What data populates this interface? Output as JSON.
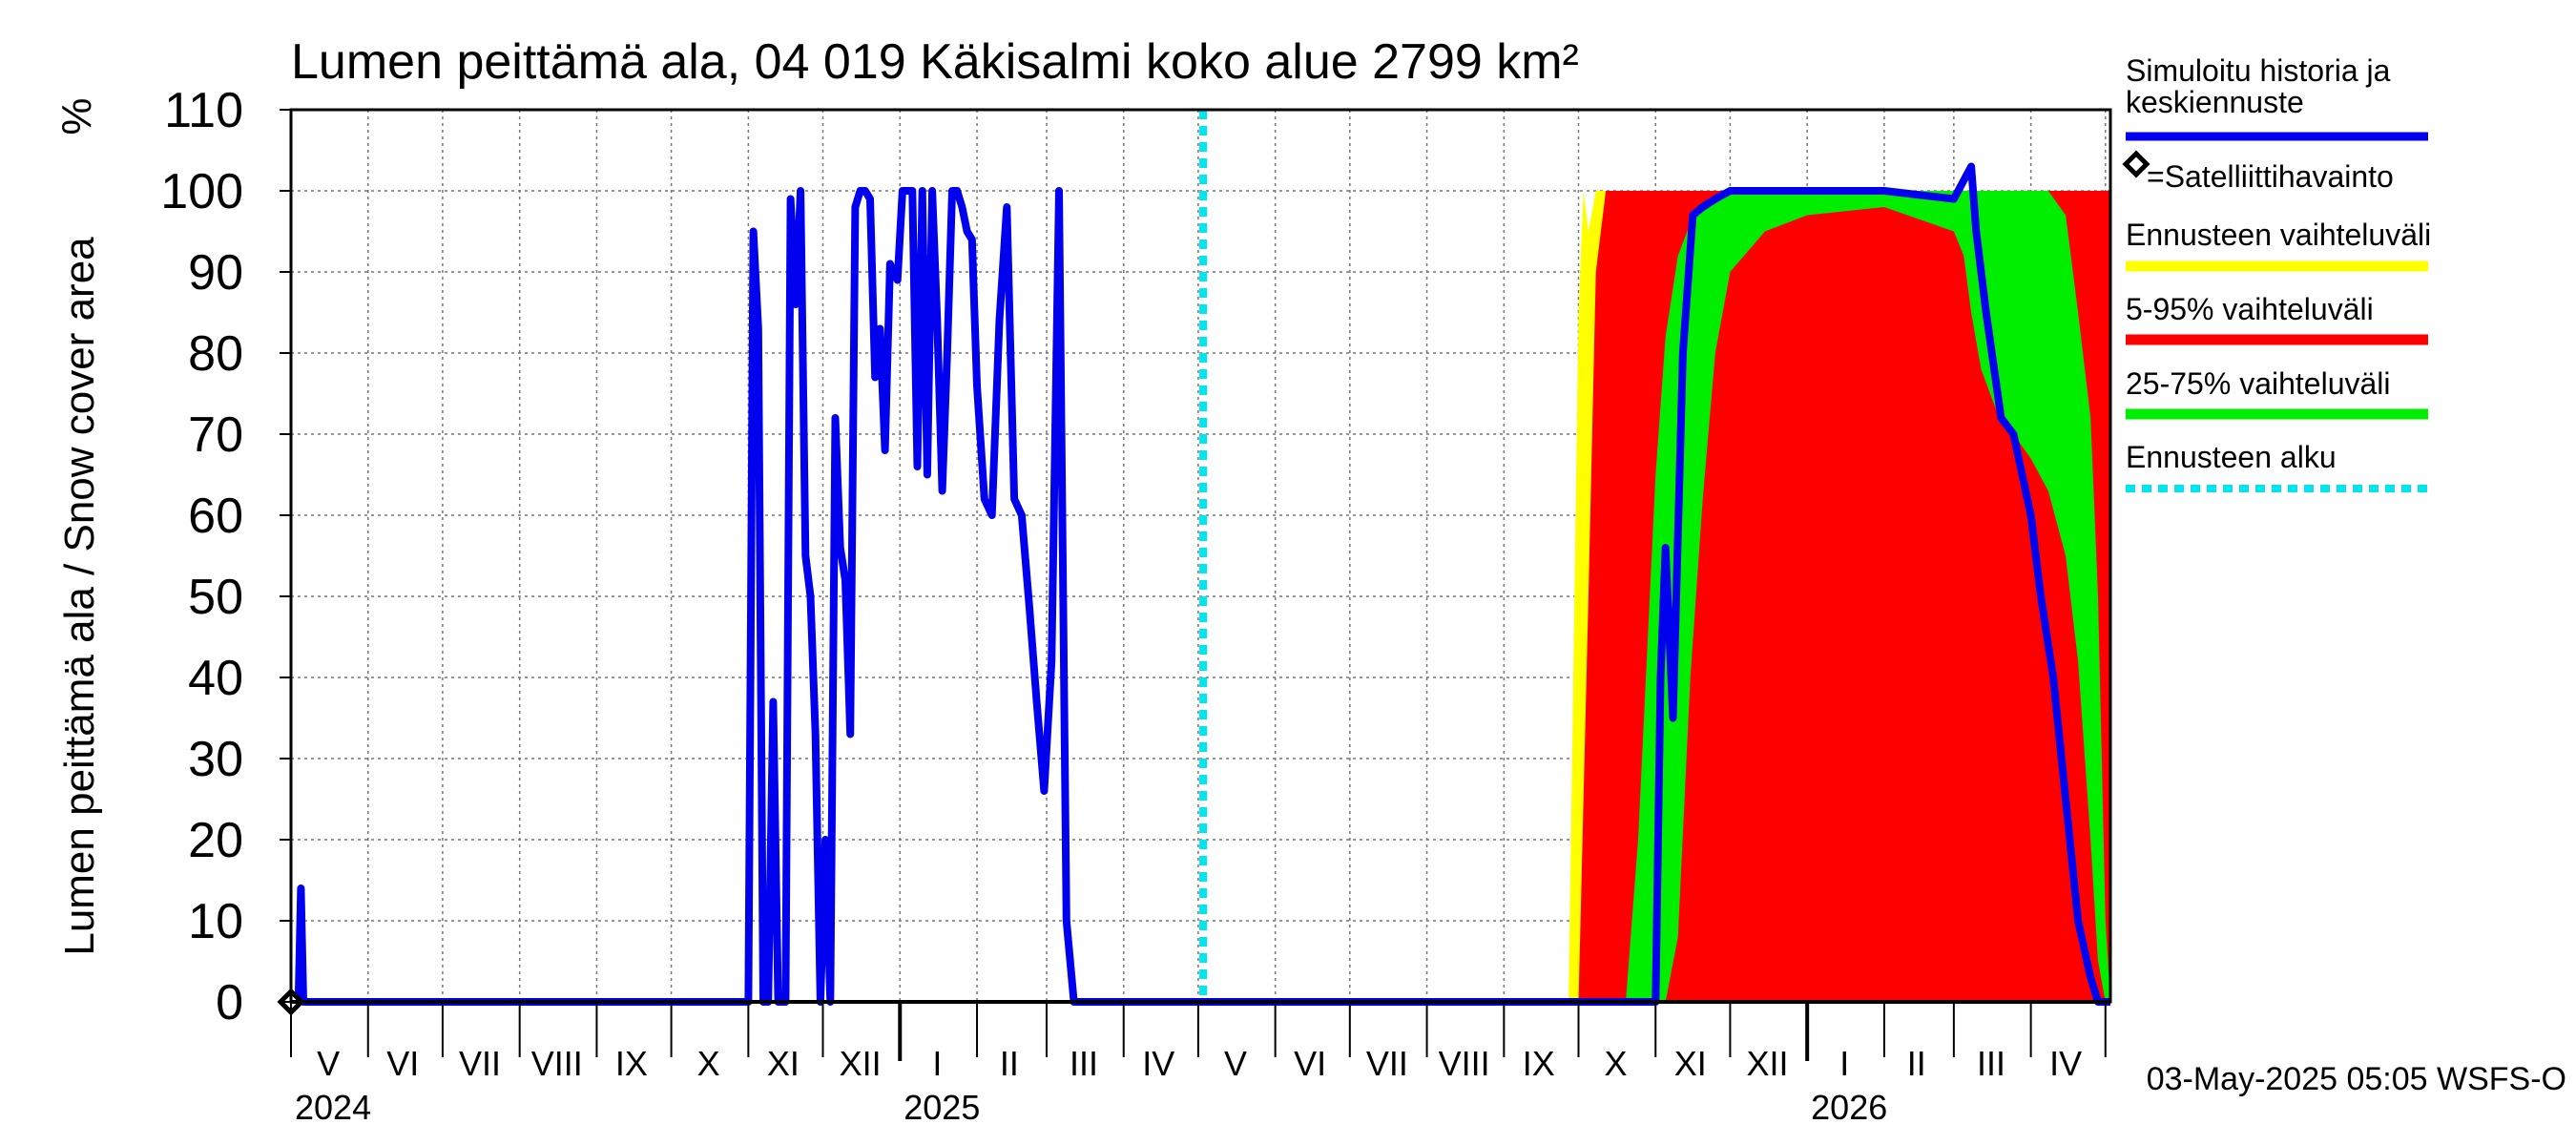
{
  "chart_data": {
    "type": "area",
    "title": "Lumen peittämä ala, 04 019 Käkisalmi koko alue 2799 km²",
    "ylabel": "Lumen peittämä ala / Snow cover area",
    "yunit": "%",
    "ylim": [
      0,
      110
    ],
    "yticks": [
      0,
      10,
      20,
      30,
      40,
      50,
      60,
      70,
      80,
      90,
      100,
      110
    ],
    "xlim": [
      "2024-05-01",
      "2026-05-03"
    ],
    "grid": true,
    "legend_position": "right",
    "month_labels": [
      {
        "label": "V",
        "mid": "2024-05-16"
      },
      {
        "label": "VI",
        "mid": "2024-06-15"
      },
      {
        "label": "VII",
        "mid": "2024-07-16"
      },
      {
        "label": "VIII",
        "mid": "2024-08-16"
      },
      {
        "label": "IX",
        "mid": "2024-09-15"
      },
      {
        "label": "X",
        "mid": "2024-10-16"
      },
      {
        "label": "XI",
        "mid": "2024-11-15"
      },
      {
        "label": "XII",
        "mid": "2024-12-16"
      },
      {
        "label": "I",
        "mid": "2025-01-16"
      },
      {
        "label": "II",
        "mid": "2025-02-14"
      },
      {
        "label": "III",
        "mid": "2025-03-16"
      },
      {
        "label": "IV",
        "mid": "2025-04-15"
      },
      {
        "label": "V",
        "mid": "2025-05-16"
      },
      {
        "label": "VI",
        "mid": "2025-06-15"
      },
      {
        "label": "VII",
        "mid": "2025-07-16"
      },
      {
        "label": "VIII",
        "mid": "2025-08-16"
      },
      {
        "label": "IX",
        "mid": "2025-09-15"
      },
      {
        "label": "X",
        "mid": "2025-10-16"
      },
      {
        "label": "XI",
        "mid": "2025-11-15"
      },
      {
        "label": "XII",
        "mid": "2025-12-16"
      },
      {
        "label": "I",
        "mid": "2026-01-16"
      },
      {
        "label": "II",
        "mid": "2026-02-14"
      },
      {
        "label": "III",
        "mid": "2026-03-16"
      },
      {
        "label": "IV",
        "mid": "2026-04-15"
      }
    ],
    "year_labels": [
      {
        "label": "2024",
        "date": "2024-05-01"
      },
      {
        "label": "2025",
        "date": "2025-01-01"
      },
      {
        "label": "2026",
        "date": "2026-01-01"
      }
    ],
    "forecast_start": "2025-05-03",
    "series": [
      {
        "name": "Simuloitu historia ja keskiennuste",
        "color": "#0000ee",
        "x": [
          "2024-05-01",
          "2024-05-04",
          "2024-05-05",
          "2024-05-06",
          "2024-05-08",
          "2024-11-01",
          "2024-11-03",
          "2024-11-05",
          "2024-11-07",
          "2024-11-09",
          "2024-11-11",
          "2024-11-13",
          "2024-11-15",
          "2024-11-16",
          "2024-11-18",
          "2024-11-20",
          "2024-11-22",
          "2024-11-24",
          "2024-11-26",
          "2024-11-28",
          "2024-11-30",
          "2024-12-02",
          "2024-12-04",
          "2024-12-06",
          "2024-12-08",
          "2024-12-10",
          "2024-12-12",
          "2024-12-14",
          "2024-12-16",
          "2024-12-18",
          "2024-12-20",
          "2024-12-22",
          "2024-12-24",
          "2024-12-26",
          "2024-12-28",
          "2024-12-31",
          "2025-01-02",
          "2025-01-04",
          "2025-01-06",
          "2025-01-08",
          "2025-01-10",
          "2025-01-12",
          "2025-01-14",
          "2025-01-16",
          "2025-01-18",
          "2025-01-20",
          "2025-01-22",
          "2025-01-24",
          "2025-01-26",
          "2025-01-28",
          "2025-01-30",
          "2025-02-01",
          "2025-02-04",
          "2025-02-07",
          "2025-02-10",
          "2025-02-13",
          "2025-02-16",
          "2025-02-19",
          "2025-02-22",
          "2025-02-25",
          "2025-02-28",
          "2025-03-03",
          "2025-03-06",
          "2025-03-09",
          "2025-03-12",
          "2025-03-15",
          "2025-03-18",
          "2025-03-21",
          "2025-03-24",
          "2025-03-27",
          "2025-03-30",
          "2025-04-02",
          "2025-04-05",
          "2025-04-08",
          "2025-04-10",
          "2025-04-12",
          "2025-04-14",
          "2025-04-16",
          "2025-04-18",
          "2025-04-20",
          "2025-04-22",
          "2025-04-24",
          "2025-04-26",
          "2025-05-03",
          "2025-06-01",
          "2025-08-01",
          "2025-10-08",
          "2025-10-20",
          "2025-11-01",
          "2025-11-03",
          "2025-11-05",
          "2025-11-08",
          "2025-11-12",
          "2025-11-16",
          "2025-11-20",
          "2025-11-25",
          "2025-12-01",
          "2025-12-10",
          "2026-01-01",
          "2026-02-01",
          "2026-03-01",
          "2026-03-08",
          "2026-03-10",
          "2026-03-14",
          "2026-03-20",
          "2026-03-25",
          "2026-04-01",
          "2026-04-05",
          "2026-04-10",
          "2026-04-15",
          "2026-04-20",
          "2026-04-25",
          "2026-04-28",
          "2026-05-01",
          "2026-05-03"
        ],
        "y": [
          0,
          0,
          14,
          0,
          0,
          0,
          95,
          83,
          0,
          0,
          37,
          0,
          0,
          0,
          99,
          86,
          100,
          55,
          50,
          33,
          0,
          20,
          0,
          72,
          56,
          52,
          33,
          98,
          100,
          100,
          99,
          77,
          83,
          68,
          91,
          89,
          100,
          100,
          100,
          66,
          100,
          65,
          100,
          84,
          63,
          80,
          100,
          100,
          98,
          95,
          94,
          76,
          62,
          60,
          84,
          98,
          62,
          60,
          49,
          37,
          26,
          42,
          100,
          10,
          0,
          0,
          0,
          0,
          0,
          0,
          0,
          0,
          0,
          0,
          0,
          0,
          0,
          0,
          0,
          0,
          0,
          0,
          0,
          0,
          0,
          0,
          0,
          0,
          0,
          40,
          56,
          35,
          80,
          97,
          98,
          99,
          100,
          100,
          100,
          100,
          99,
          103,
          95,
          85,
          72,
          70,
          60,
          50,
          40,
          25,
          10,
          3,
          0,
          0,
          0
        ]
      }
    ],
    "bands": [
      {
        "name": "Ennusteen vaihteluväli",
        "color": "#ffff00",
        "x": [
          "2025-09-27",
          "2025-10-01",
          "2025-10-03",
          "2025-10-05",
          "2025-10-08",
          "2025-10-10",
          "2025-10-12",
          "2025-10-15",
          "2025-10-20",
          "2025-11-01",
          "2025-11-10",
          "2025-11-20",
          "2025-12-01",
          "2025-12-15",
          "2026-01-01",
          "2026-02-01",
          "2026-03-01",
          "2026-03-15",
          "2026-03-25",
          "2026-04-01",
          "2026-04-10",
          "2026-04-15",
          "2026-04-20",
          "2026-04-25",
          "2026-05-01",
          "2026-05-03"
        ],
        "upper": [
          0,
          85,
          100,
          95,
          100,
          100,
          100,
          100,
          100,
          100,
          100,
          100,
          100,
          100,
          100,
          100,
          100,
          100,
          100,
          100,
          100,
          100,
          100,
          95,
          80,
          0
        ],
        "lower": [
          0,
          0,
          0,
          0,
          0,
          0,
          0,
          0,
          0,
          0,
          0,
          0,
          0,
          0,
          0,
          0,
          0,
          0,
          0,
          0,
          0,
          0,
          0,
          0,
          0,
          0
        ]
      },
      {
        "name": "5-95% vaihteluväli",
        "color": "#ff0000",
        "x": [
          "2025-10-01",
          "2025-10-05",
          "2025-10-08",
          "2025-10-12",
          "2025-10-15",
          "2025-10-20",
          "2025-10-25",
          "2025-11-01",
          "2025-11-10",
          "2025-11-20",
          "2025-12-01",
          "2025-12-15",
          "2026-01-01",
          "2026-01-15",
          "2026-02-01",
          "2026-02-15",
          "2026-03-01",
          "2026-03-10",
          "2026-03-20",
          "2026-03-25",
          "2026-04-01",
          "2026-04-05",
          "2026-04-10",
          "2026-04-15",
          "2026-04-20",
          "2026-04-25",
          "2026-05-01",
          "2026-05-03"
        ],
        "upper": [
          0,
          50,
          90,
          100,
          100,
          100,
          100,
          100,
          100,
          100,
          100,
          100,
          100,
          100,
          100,
          100,
          100,
          100,
          100,
          100,
          100,
          100,
          100,
          100,
          100,
          100,
          100,
          100
        ],
        "lower": [
          0,
          0,
          0,
          0,
          0,
          0,
          0,
          0,
          0,
          0,
          0,
          0,
          0,
          0,
          0,
          0,
          0,
          0,
          0,
          0,
          0,
          0,
          0,
          0,
          0,
          0,
          0,
          0
        ]
      },
      {
        "name": "25-75% vaihteluväli",
        "color": "#00ee00",
        "x": [
          "2025-10-20",
          "2025-10-25",
          "2025-11-01",
          "2025-11-05",
          "2025-11-10",
          "2025-11-15",
          "2025-11-20",
          "2025-11-25",
          "2025-12-01",
          "2025-12-15",
          "2026-01-01",
          "2026-02-01",
          "2026-03-01",
          "2026-03-05",
          "2026-03-08",
          "2026-03-12",
          "2026-03-18",
          "2026-03-25",
          "2026-04-01",
          "2026-04-08",
          "2026-04-15",
          "2026-04-20",
          "2026-04-25",
          "2026-04-28",
          "2026-05-01",
          "2026-05-03"
        ],
        "upper": [
          0,
          20,
          65,
          82,
          92,
          96,
          98,
          99,
          100,
          100,
          100,
          100,
          100,
          100,
          100,
          100,
          100,
          100,
          100,
          100,
          97,
          85,
          72,
          50,
          10,
          0
        ],
        "lower": [
          0,
          0,
          0,
          0,
          8,
          40,
          62,
          80,
          90,
          95,
          97,
          98,
          95,
          92,
          85,
          78,
          73,
          70,
          67,
          63,
          55,
          42,
          20,
          5,
          0,
          0
        ]
      }
    ],
    "observations": [
      {
        "name": "=Satelliittihavainto",
        "x": "2024-05-01",
        "y": 0
      }
    ],
    "legend": [
      {
        "label": "Simuloitu historia ja keskiennuste",
        "style": "line",
        "color": "#0000ee"
      },
      {
        "label": "=Satelliittihavainto",
        "style": "diamond",
        "color": "#000000"
      },
      {
        "label": "Ennusteen vaihteluväli",
        "style": "band",
        "color": "#ffff00"
      },
      {
        "label": "5-95% vaihteluväli",
        "style": "band",
        "color": "#ff0000"
      },
      {
        "label": "25-75% vaihteluväli",
        "style": "band",
        "color": "#00ee00"
      },
      {
        "label": "Ennusteen alku",
        "style": "dashed",
        "color": "#00e5ee"
      }
    ]
  },
  "footer": {
    "timestamp": "03-May-2025 05:05 WSFS-O"
  }
}
